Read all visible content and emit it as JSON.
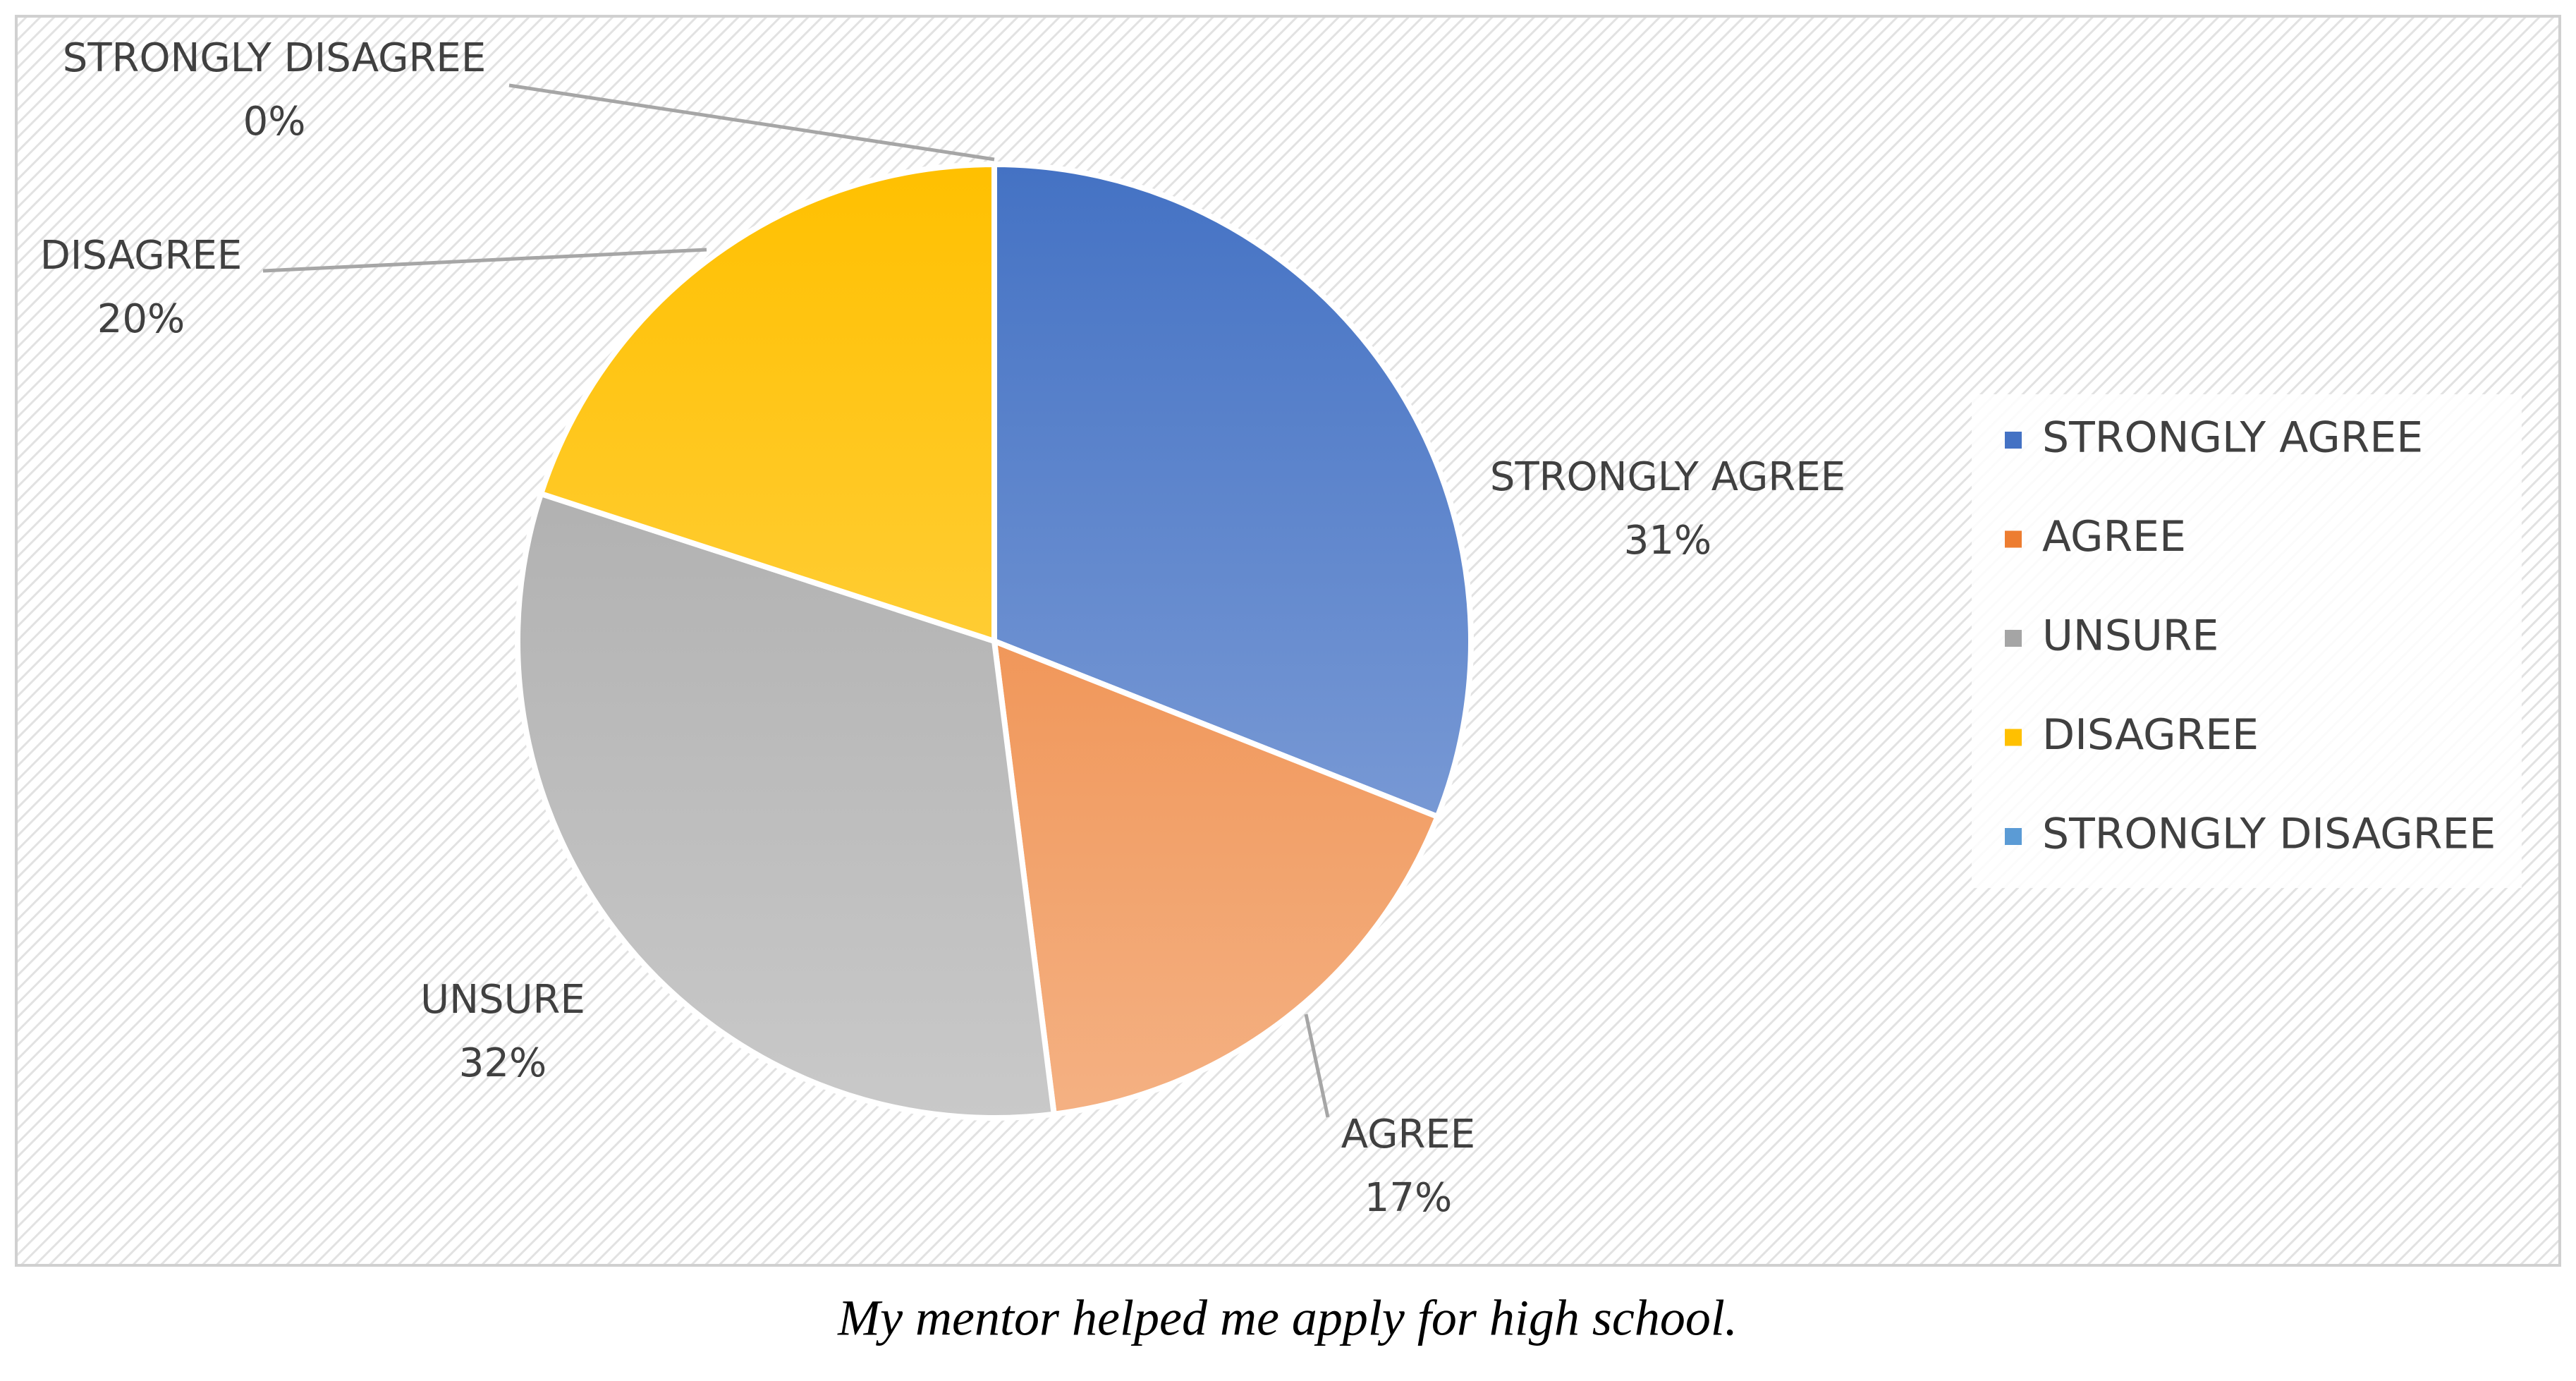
{
  "chart_data": {
    "type": "pie",
    "title": "My mentor helped me apply for high school.",
    "categories": [
      "STRONGLY AGREE",
      "AGREE",
      "UNSURE",
      "DISAGREE",
      "STRONGLY DISAGREE"
    ],
    "values": [
      31,
      17,
      32,
      20,
      0
    ],
    "value_labels": [
      "31%",
      "17%",
      "32%",
      "20%",
      "0%"
    ],
    "colors": [
      "#4472c4",
      "#ed7d31",
      "#a5a5a5",
      "#ffc000",
      "#5b9bd5"
    ],
    "legend": "right"
  }
}
